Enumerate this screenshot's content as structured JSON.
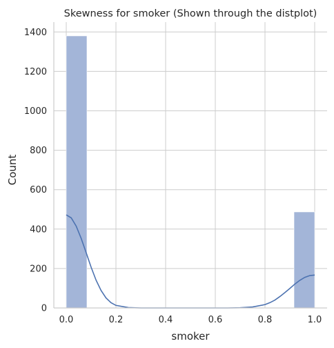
{
  "chart_data": {
    "type": "bar",
    "title": "Skewness for smoker (Shown through the distplot)",
    "xlabel": "smoker",
    "ylabel": "Count",
    "xlim": [
      -0.05,
      1.05
    ],
    "ylim": [
      0,
      1450
    ],
    "xticks": [
      0.0,
      0.2,
      0.4,
      0.6,
      0.8,
      1.0
    ],
    "xtick_labels": [
      "0.0",
      "0.2",
      "0.4",
      "0.6",
      "0.8",
      "1.0"
    ],
    "yticks": [
      0,
      200,
      400,
      600,
      800,
      1000,
      1200,
      1400
    ],
    "ytick_labels": [
      "0",
      "200",
      "400",
      "600",
      "800",
      "1000",
      "1200",
      "1400"
    ],
    "grid": true,
    "bins": [
      {
        "x0": 0.0,
        "x1": 0.0833,
        "count": 1380
      },
      {
        "x0": 0.9167,
        "x1": 1.0,
        "count": 487
      }
    ],
    "kde": {
      "x": [
        0.0,
        0.02,
        0.04,
        0.06,
        0.08,
        0.1,
        0.12,
        0.14,
        0.16,
        0.18,
        0.2,
        0.25,
        0.3,
        0.35,
        0.4,
        0.5,
        0.6,
        0.65,
        0.7,
        0.75,
        0.8,
        0.82,
        0.84,
        0.86,
        0.88,
        0.9,
        0.92,
        0.94,
        0.96,
        0.98,
        1.0
      ],
      "y": [
        472,
        457,
        415,
        353,
        281,
        207,
        141,
        89,
        51,
        27,
        13,
        2,
        0,
        0,
        0,
        0,
        0,
        0,
        1,
        5,
        17,
        27,
        40,
        58,
        78,
        99,
        121,
        140,
        155,
        164,
        167
      ]
    },
    "colors": {
      "bar_fill": "#a3b5d8",
      "kde_line": "#4c72b0",
      "grid": "#cccccc",
      "spine": "#cccccc"
    }
  }
}
